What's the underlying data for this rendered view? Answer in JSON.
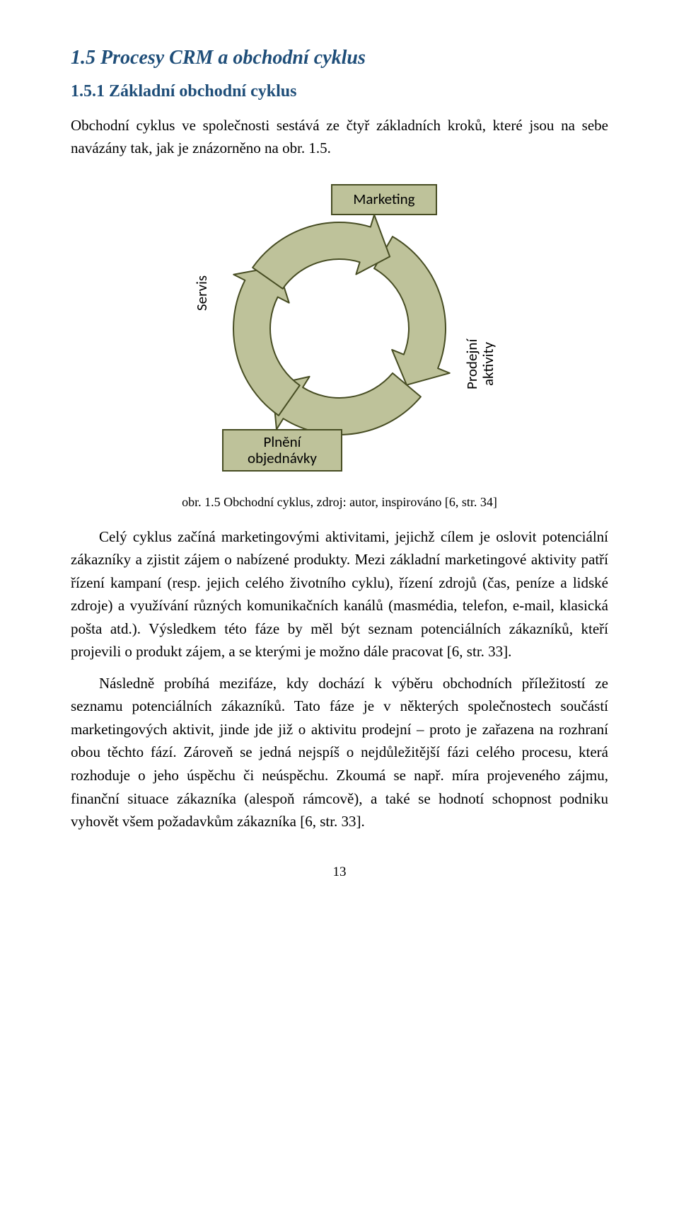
{
  "heading1": "1.5  Procesy CRM a obchodní cyklus",
  "heading2": "1.5.1 Základní obchodní cyklus",
  "intro": "Obchodní cyklus ve společnosti sestává ze čtyř základních kroků, které jsou na sebe navázány tak, jak je znázorněno na obr. 1.5.",
  "caption": "obr. 1.5 Obchodní cyklus, zdroj: autor, inspirováno [6, str. 34]",
  "para1": "Celý cyklus začíná marketingovými aktivitami, jejichž cílem je oslovit potenciální zákazníky a zjistit zájem o nabízené produkty. Mezi základní marketingové aktivity patří řízení kampaní (resp. jejich celého životního cyklu), řízení zdrojů (čas, peníze a lidské zdroje) a využívání různých komunikačních kanálů (masmédia, telefon, e-mail, klasická pošta atd.). Výsledkem této fáze by měl být seznam potenciálních zákazníků, kteří projevili o produkt zájem, a se kterými je možno dále pracovat [6, str. 33].",
  "para2": "Následně probíhá mezifáze, kdy dochází k výběru obchodních příležitostí ze seznamu potenciálních zákazníků. Tato fáze je v některých společnostech součástí marketingových aktivit, jinde jde již o aktivitu prodejní – proto je zařazena na rozhraní obou těchto fází. Zároveň se jedná nejspíš o nejdůležitější fázi celého procesu, která rozhoduje o jeho úspěchu či neúspěchu. Zkoumá se např. míra projeveného zájmu, finanční situace zákazníka (alespoň rámcově), a také se hodnotí schopnost podniku vyhovět všem požadavkům zákazníka [6, str. 33].",
  "pagenum": "13",
  "diagram": {
    "type": "flowchart",
    "background_color": "#ffffff",
    "arrow_fill": "#bec29a",
    "arrow_border": "#474d23",
    "arrow_border_width": 2,
    "box_fill": "#bec29a",
    "box_border": "#474d23",
    "box_border_width": 2,
    "label_color": "#000000",
    "label_fontsize": 21,
    "nodes": {
      "top": {
        "label": "Marketing"
      },
      "right": {
        "label": "Prodejní\naktivity"
      },
      "bottom": {
        "label": "Plnění\nobjednávky"
      },
      "left": {
        "label": "Servis"
      }
    }
  }
}
